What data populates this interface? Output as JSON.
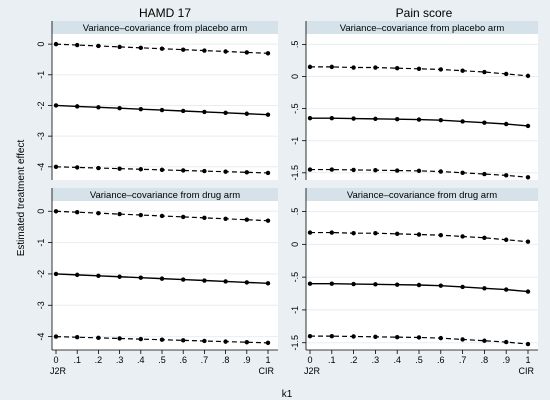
{
  "figure": {
    "shared_ylabel": "Estimated treatment effect",
    "shared_xlabel": "k1",
    "column_titles": [
      "HAMD 17",
      "Pain score"
    ],
    "colors": {
      "background": "#e9eff3",
      "panel": "#ffffff",
      "strip": "#d5e2ea",
      "grid": "#e7eef2",
      "line": "#000000"
    }
  },
  "chart_data": [
    {
      "type": "line",
      "column_title": "HAMD 17",
      "panel_title": "Variance–covariance from placebo arm",
      "x": [
        0,
        0.1,
        0.2,
        0.3,
        0.4,
        0.5,
        0.6,
        0.7,
        0.8,
        0.9,
        1
      ],
      "xtick_labels": [
        "0",
        ".1",
        ".2",
        ".3",
        ".4",
        ".5",
        ".6",
        ".7",
        ".8",
        ".9",
        "1"
      ],
      "x_end_labels": [
        "J2R",
        "CIR"
      ],
      "ylim": [
        -4.3,
        0.2
      ],
      "yticks": [
        0,
        -1,
        -2,
        -3,
        -4
      ],
      "ytick_labels": [
        "0",
        "-1",
        "-2",
        "-3",
        "-4"
      ],
      "series": [
        {
          "style": "dashed",
          "values": [
            0.0,
            -0.03,
            -0.06,
            -0.09,
            -0.12,
            -0.15,
            -0.18,
            -0.21,
            -0.24,
            -0.27,
            -0.3
          ]
        },
        {
          "style": "solid",
          "values": [
            -2.0,
            -2.03,
            -2.06,
            -2.09,
            -2.12,
            -2.15,
            -2.18,
            -2.21,
            -2.24,
            -2.27,
            -2.3
          ]
        },
        {
          "style": "dashed",
          "values": [
            -4.0,
            -4.02,
            -4.04,
            -4.06,
            -4.08,
            -4.1,
            -4.12,
            -4.14,
            -4.16,
            -4.18,
            -4.2
          ]
        }
      ]
    },
    {
      "type": "line",
      "column_title": "Pain score",
      "panel_title": "Variance–covariance from placebo arm",
      "x": [
        0,
        0.1,
        0.2,
        0.3,
        0.4,
        0.5,
        0.6,
        0.7,
        0.8,
        0.9,
        1
      ],
      "xtick_labels": [
        "0",
        ".1",
        ".2",
        ".3",
        ".4",
        ".5",
        ".6",
        ".7",
        ".8",
        ".9",
        "1"
      ],
      "x_end_labels": [
        "J2R",
        "CIR"
      ],
      "ylim": [
        -1.55,
        0.6
      ],
      "yticks": [
        0.5,
        0,
        -0.5,
        -1,
        -1.5
      ],
      "ytick_labels": [
        ".5",
        "0",
        "-.5",
        "-1",
        "-1.5"
      ],
      "series": [
        {
          "style": "dashed",
          "values": [
            0.15,
            0.15,
            0.14,
            0.14,
            0.13,
            0.12,
            0.11,
            0.09,
            0.07,
            0.04,
            0.01
          ]
        },
        {
          "style": "solid",
          "values": [
            -0.65,
            -0.65,
            -0.655,
            -0.66,
            -0.665,
            -0.67,
            -0.68,
            -0.7,
            -0.72,
            -0.74,
            -0.77
          ]
        },
        {
          "style": "dashed",
          "values": [
            -1.45,
            -1.45,
            -1.455,
            -1.46,
            -1.465,
            -1.47,
            -1.48,
            -1.5,
            -1.52,
            -1.54,
            -1.57
          ]
        }
      ]
    },
    {
      "type": "line",
      "column_title": "HAMD 17",
      "panel_title": "Variance–covariance from drug arm",
      "x": [
        0,
        0.1,
        0.2,
        0.3,
        0.4,
        0.5,
        0.6,
        0.7,
        0.8,
        0.9,
        1
      ],
      "xtick_labels": [
        "0",
        ".1",
        ".2",
        ".3",
        ".4",
        ".5",
        ".6",
        ".7",
        ".8",
        ".9",
        "1"
      ],
      "x_end_labels": [
        "J2R",
        "CIR"
      ],
      "ylim": [
        -4.3,
        0.2
      ],
      "yticks": [
        0,
        -1,
        -2,
        -3,
        -4
      ],
      "ytick_labels": [
        "0",
        "-1",
        "-2",
        "-3",
        "-4"
      ],
      "series": [
        {
          "style": "dashed",
          "values": [
            0.0,
            -0.03,
            -0.06,
            -0.09,
            -0.12,
            -0.15,
            -0.18,
            -0.21,
            -0.24,
            -0.27,
            -0.3
          ]
        },
        {
          "style": "solid",
          "values": [
            -2.0,
            -2.03,
            -2.06,
            -2.09,
            -2.12,
            -2.15,
            -2.18,
            -2.21,
            -2.24,
            -2.27,
            -2.3
          ]
        },
        {
          "style": "dashed",
          "values": [
            -4.0,
            -4.02,
            -4.04,
            -4.06,
            -4.08,
            -4.1,
            -4.12,
            -4.14,
            -4.16,
            -4.18,
            -4.2
          ]
        }
      ]
    },
    {
      "type": "line",
      "column_title": "Pain score",
      "panel_title": "Variance–covariance from drug arm",
      "x": [
        0,
        0.1,
        0.2,
        0.3,
        0.4,
        0.5,
        0.6,
        0.7,
        0.8,
        0.9,
        1
      ],
      "xtick_labels": [
        "0",
        ".1",
        ".2",
        ".3",
        ".4",
        ".5",
        ".6",
        ".7",
        ".8",
        ".9",
        "1"
      ],
      "x_end_labels": [
        "J2R",
        "CIR"
      ],
      "ylim": [
        -1.55,
        0.6
      ],
      "yticks": [
        0.5,
        0,
        -0.5,
        -1,
        -1.5
      ],
      "ytick_labels": [
        ".5",
        "0",
        "-.5",
        "-1",
        "-1.5"
      ],
      "series": [
        {
          "style": "dashed",
          "values": [
            0.18,
            0.18,
            0.17,
            0.17,
            0.16,
            0.15,
            0.14,
            0.12,
            0.1,
            0.07,
            0.04
          ]
        },
        {
          "style": "solid",
          "values": [
            -0.6,
            -0.6,
            -0.605,
            -0.61,
            -0.615,
            -0.62,
            -0.63,
            -0.65,
            -0.67,
            -0.69,
            -0.72
          ]
        },
        {
          "style": "dashed",
          "values": [
            -1.4,
            -1.4,
            -1.405,
            -1.41,
            -1.415,
            -1.42,
            -1.43,
            -1.45,
            -1.47,
            -1.49,
            -1.52
          ]
        }
      ]
    }
  ]
}
